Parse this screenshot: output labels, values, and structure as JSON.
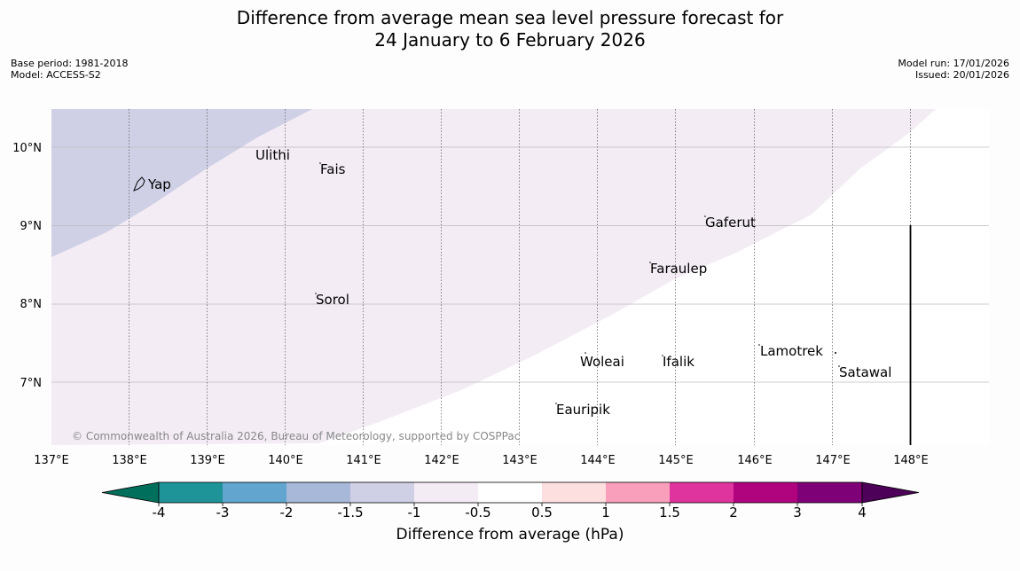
{
  "title": {
    "line1": "Difference from average mean sea level pressure forecast for",
    "line2": "24 January to 6 February 2026"
  },
  "meta_left": {
    "base_period": "Base period: 1981-2018",
    "model": "Model: ACCESS-S2"
  },
  "meta_right": {
    "model_run": "Model run: 17/01/2026",
    "issued": "Issued: 20/01/2026"
  },
  "map": {
    "lon_labels": [
      "137°E",
      "138°E",
      "139°E",
      "140°E",
      "141°E",
      "142°E",
      "143°E",
      "144°E",
      "145°E",
      "146°E",
      "147°E",
      "148°E"
    ],
    "lat_labels": [
      "10°N",
      "9°N",
      "8°N",
      "7°N"
    ],
    "places": [
      {
        "name": "Yap"
      },
      {
        "name": "Ulithi"
      },
      {
        "name": "Fais"
      },
      {
        "name": "Gaferut"
      },
      {
        "name": "Faraulep"
      },
      {
        "name": "Sorol"
      },
      {
        "name": "Lamotrek"
      },
      {
        "name": "Woleai"
      },
      {
        "name": "Ifalik"
      },
      {
        "name": "Satawal"
      },
      {
        "name": "Eauripik"
      }
    ],
    "copyright": "© Commonwealth of Australia 2026, Bureau of Meteorology, supported by COSPPac"
  },
  "colorbar": {
    "title": "Difference from average (hPa)",
    "tick_labels": [
      "-4",
      "-3",
      "-2",
      "-1.5",
      "-1",
      "-0.5",
      "0.5",
      "1",
      "1.5",
      "2",
      "3",
      "4"
    ],
    "colors": {
      "under": "#00705c",
      "bins": [
        "#1e9499",
        "#62a6cf",
        "#a7b8d9",
        "#cfd0e6",
        "#f3ecf5",
        "#ffffff",
        "#fedfe0",
        "#f99fbb",
        "#df339e",
        "#b0047f",
        "#7e0177"
      ],
      "over": "#4d0158"
    }
  },
  "fill_colors": {
    "lower_region": "#ffffff",
    "middle_region": "#f3ecf5",
    "upper_region": "#cfd0e6"
  }
}
